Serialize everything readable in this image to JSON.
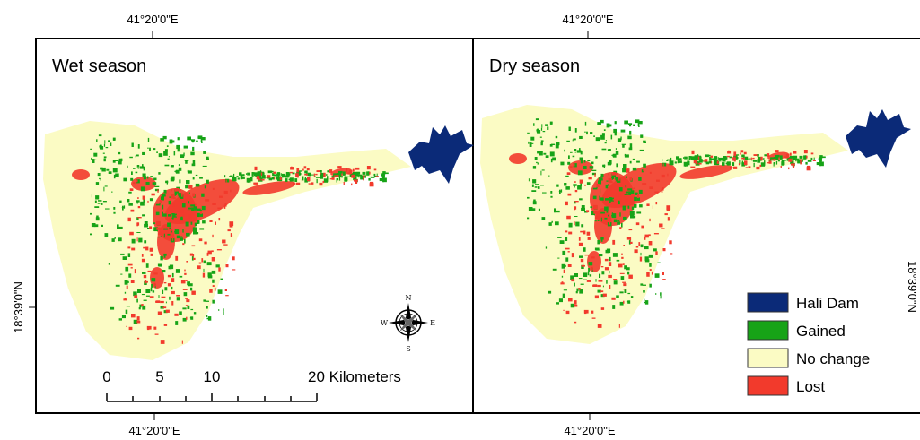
{
  "panels": [
    {
      "title": "Wet season"
    },
    {
      "title": "Dry season"
    }
  ],
  "graticule": {
    "top": [
      "41°20'0\"E",
      "41°20'0\"E"
    ],
    "bottom": [
      "41°20'0\"E",
      "41°20'0\"E"
    ],
    "left": "18°39'0\"N",
    "right": "18°39'0\"N"
  },
  "scale_bar": {
    "labels": [
      "0",
      "5",
      "10",
      "20 Kilometers"
    ]
  },
  "compass": {
    "north": "N",
    "east": "E",
    "south": "S",
    "west": "W"
  },
  "legend": [
    {
      "label": "Hali Dam",
      "color": "#0b2a78"
    },
    {
      "label": "Gained",
      "color": "#17a317"
    },
    {
      "label": "No change",
      "color": "#fbfbc4"
    },
    {
      "label": "Lost",
      "color": "#f23a2c"
    }
  ]
}
